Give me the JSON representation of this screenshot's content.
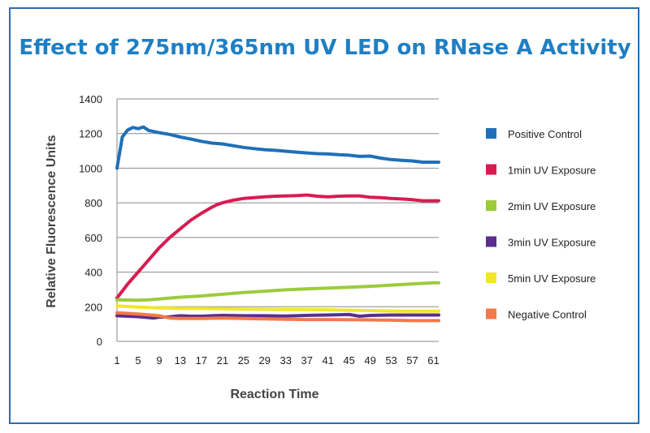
{
  "chart_data": {
    "type": "line",
    "title": "Effect of 275nm/365nm UV LED on RNase A Activity",
    "xlabel": "Reaction Time",
    "ylabel": "Relative Fluorescence Units",
    "ylim": [
      0,
      1400
    ],
    "yticks": [
      0,
      200,
      400,
      600,
      800,
      1000,
      1200,
      1400
    ],
    "xlim": [
      1,
      62
    ],
    "xticks": [
      1,
      5,
      9,
      13,
      17,
      21,
      25,
      29,
      33,
      37,
      41,
      45,
      49,
      53,
      57,
      61
    ],
    "grid": "horizontal",
    "legend_position": "right",
    "series": [
      {
        "name": "Positive Control",
        "color": "#1f6fb8",
        "points": [
          [
            1,
            1000
          ],
          [
            2,
            1180
          ],
          [
            3,
            1220
          ],
          [
            4,
            1235
          ],
          [
            5,
            1228
          ],
          [
            6,
            1238
          ],
          [
            7,
            1218
          ],
          [
            9,
            1205
          ],
          [
            11,
            1195
          ],
          [
            13,
            1180
          ],
          [
            15,
            1168
          ],
          [
            17,
            1155
          ],
          [
            19,
            1145
          ],
          [
            21,
            1140
          ],
          [
            23,
            1130
          ],
          [
            25,
            1120
          ],
          [
            27,
            1113
          ],
          [
            29,
            1107
          ],
          [
            31,
            1103
          ],
          [
            33,
            1098
          ],
          [
            35,
            1093
          ],
          [
            37,
            1088
          ],
          [
            39,
            1084
          ],
          [
            41,
            1082
          ],
          [
            43,
            1078
          ],
          [
            45,
            1075
          ],
          [
            47,
            1068
          ],
          [
            49,
            1070
          ],
          [
            51,
            1058
          ],
          [
            53,
            1050
          ],
          [
            55,
            1045
          ],
          [
            57,
            1042
          ],
          [
            59,
            1035
          ],
          [
            61,
            1035
          ],
          [
            62,
            1035
          ]
        ]
      },
      {
        "name": "1min UV Exposure",
        "color": "#d81b50",
        "points": [
          [
            1,
            250
          ],
          [
            3,
            330
          ],
          [
            5,
            400
          ],
          [
            7,
            470
          ],
          [
            9,
            540
          ],
          [
            11,
            600
          ],
          [
            13,
            650
          ],
          [
            15,
            700
          ],
          [
            17,
            740
          ],
          [
            19,
            775
          ],
          [
            20,
            790
          ],
          [
            21,
            800
          ],
          [
            23,
            815
          ],
          [
            25,
            825
          ],
          [
            27,
            830
          ],
          [
            29,
            835
          ],
          [
            31,
            838
          ],
          [
            33,
            840
          ],
          [
            35,
            842
          ],
          [
            37,
            845
          ],
          [
            39,
            838
          ],
          [
            41,
            835
          ],
          [
            43,
            838
          ],
          [
            45,
            840
          ],
          [
            47,
            840
          ],
          [
            49,
            832
          ],
          [
            51,
            830
          ],
          [
            53,
            825
          ],
          [
            55,
            822
          ],
          [
            57,
            818
          ],
          [
            59,
            812
          ],
          [
            61,
            812
          ],
          [
            62,
            812
          ]
        ]
      },
      {
        "name": "2min UV Exposure",
        "color": "#9ccc3c",
        "points": [
          [
            1,
            240
          ],
          [
            5,
            238
          ],
          [
            7,
            240
          ],
          [
            9,
            245
          ],
          [
            13,
            255
          ],
          [
            17,
            262
          ],
          [
            21,
            272
          ],
          [
            25,
            282
          ],
          [
            29,
            290
          ],
          [
            33,
            298
          ],
          [
            37,
            303
          ],
          [
            41,
            308
          ],
          [
            45,
            313
          ],
          [
            49,
            318
          ],
          [
            53,
            325
          ],
          [
            57,
            332
          ],
          [
            61,
            338
          ],
          [
            62,
            338
          ]
        ]
      },
      {
        "name": "3min UV Exposure",
        "color": "#5b2d8e",
        "points": [
          [
            1,
            148
          ],
          [
            5,
            143
          ],
          [
            8,
            135
          ],
          [
            9,
            140
          ],
          [
            11,
            142
          ],
          [
            13,
            148
          ],
          [
            15,
            145
          ],
          [
            17,
            145
          ],
          [
            19,
            148
          ],
          [
            21,
            150
          ],
          [
            25,
            148
          ],
          [
            29,
            148
          ],
          [
            33,
            146
          ],
          [
            37,
            150
          ],
          [
            41,
            152
          ],
          [
            45,
            155
          ],
          [
            47,
            145
          ],
          [
            49,
            150
          ],
          [
            53,
            152
          ],
          [
            57,
            152
          ],
          [
            61,
            152
          ],
          [
            62,
            152
          ]
        ]
      },
      {
        "name": "5min UV Exposure",
        "color": "#f0e62d",
        "points": [
          [
            1,
            205
          ],
          [
            5,
            198
          ],
          [
            9,
            193
          ],
          [
            13,
            190
          ],
          [
            17,
            190
          ],
          [
            21,
            188
          ],
          [
            25,
            186
          ],
          [
            29,
            185
          ],
          [
            33,
            184
          ],
          [
            37,
            183
          ],
          [
            41,
            182
          ],
          [
            45,
            180
          ],
          [
            49,
            178
          ],
          [
            53,
            175
          ],
          [
            57,
            174
          ],
          [
            61,
            174
          ],
          [
            62,
            174
          ]
        ]
      },
      {
        "name": "Negative Control",
        "color": "#f27a4a",
        "points": [
          [
            1,
            165
          ],
          [
            5,
            158
          ],
          [
            9,
            148
          ],
          [
            11,
            135
          ],
          [
            13,
            132
          ],
          [
            17,
            132
          ],
          [
            21,
            135
          ],
          [
            25,
            132
          ],
          [
            29,
            130
          ],
          [
            33,
            128
          ],
          [
            37,
            126
          ],
          [
            41,
            126
          ],
          [
            45,
            125
          ],
          [
            49,
            124
          ],
          [
            53,
            122
          ],
          [
            57,
            120
          ],
          [
            61,
            120
          ],
          [
            62,
            120
          ]
        ]
      }
    ]
  }
}
